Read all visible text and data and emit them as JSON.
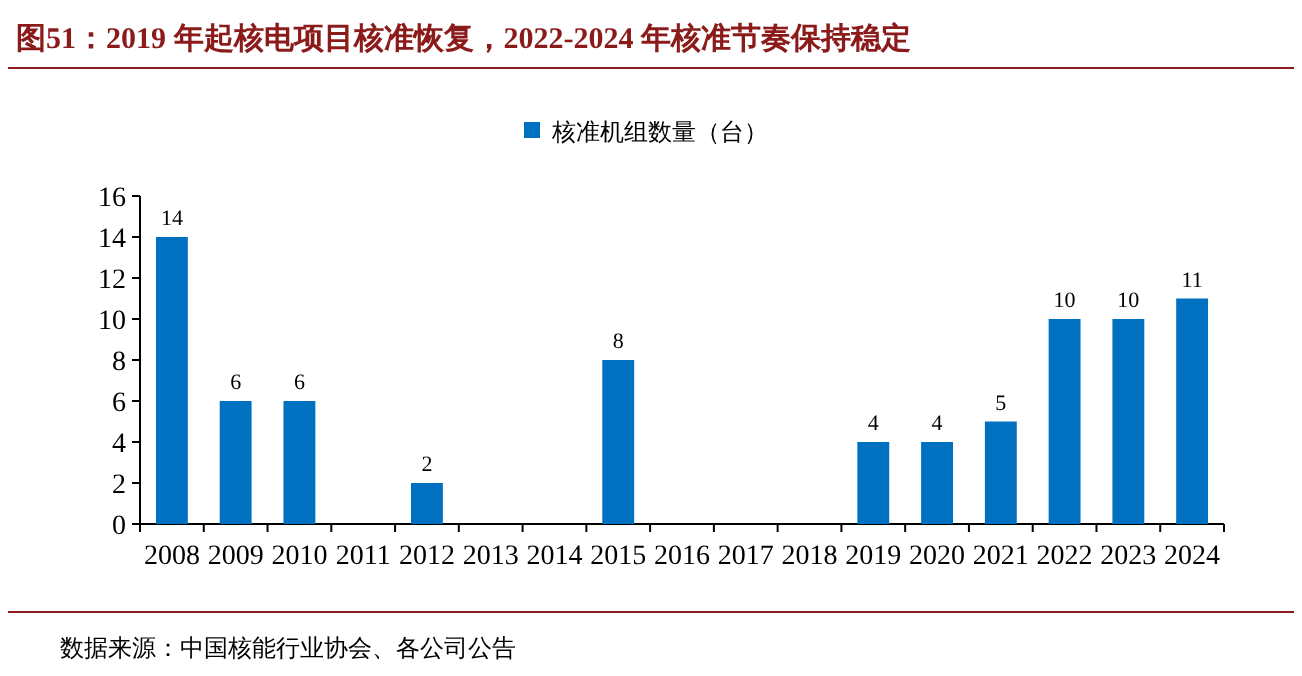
{
  "chart_data": {
    "type": "bar",
    "title": "图51：2019 年起核电项目核准恢复，2022-2024 年核准节奏保持稳定",
    "categories": [
      "2008",
      "2009",
      "2010",
      "2011",
      "2012",
      "2013",
      "2014",
      "2015",
      "2016",
      "2017",
      "2018",
      "2019",
      "2020",
      "2021",
      "2022",
      "2023",
      "2024"
    ],
    "series": [
      {
        "name": "核准机组数量（台）",
        "color": "#0070c0",
        "values": [
          14,
          6,
          6,
          0,
          2,
          0,
          0,
          8,
          0,
          0,
          0,
          4,
          4,
          5,
          10,
          10,
          11
        ],
        "value_labels": [
          "14",
          "6",
          "6",
          null,
          "2",
          null,
          null,
          "8",
          null,
          null,
          null,
          "4",
          "4",
          "5",
          "10",
          "10",
          "11"
        ]
      }
    ],
    "ylim": [
      0,
      16
    ],
    "yticks": [
      0,
      2,
      4,
      6,
      8,
      10,
      12,
      14,
      16
    ],
    "legend": "top",
    "grid": false,
    "annotations": [
      "数据来源：中国核能行业协会、各公司公告"
    ]
  }
}
